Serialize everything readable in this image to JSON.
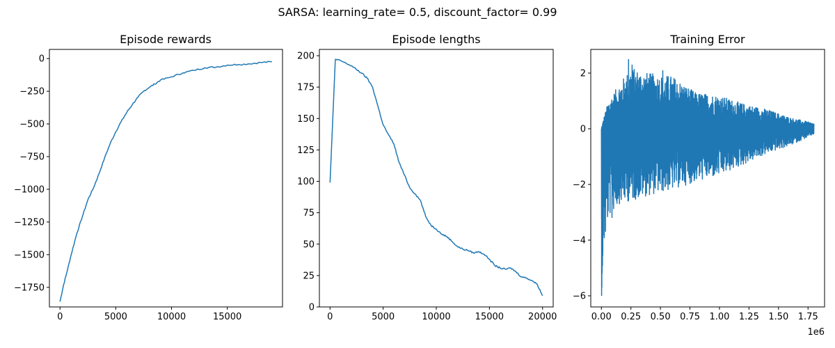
{
  "figure": {
    "suptitle": "SARSA: learning_rate= 0.5, discount_factor= 0.99",
    "line_color": "#1f77b4"
  },
  "chart_data": [
    {
      "type": "line",
      "title": "Episode rewards",
      "xlabel": "",
      "ylabel": "",
      "xlim": [
        -950,
        19950
      ],
      "ylim": [
        -1900,
        70
      ],
      "xticks": [
        0,
        5000,
        10000,
        15000
      ],
      "xtick_labels": [
        "0",
        "5000",
        "10000",
        "15000"
      ],
      "yticks": [
        0,
        -250,
        -500,
        -750,
        -1000,
        -1250,
        -1500,
        -1750
      ],
      "ytick_labels": [
        "0",
        "−250",
        "−500",
        "−750",
        "−1000",
        "−1250",
        "−1500",
        "−1750"
      ],
      "offset_label": "",
      "grid": false,
      "series": [
        {
          "x": [
            0,
            300,
            600,
            1000,
            1500,
            2000,
            2500,
            3000,
            3500,
            4000,
            4500,
            5000,
            5500,
            6000,
            6500,
            7000,
            7500,
            8000,
            8500,
            9000,
            10000,
            11000,
            12000,
            13000,
            14000,
            15000,
            16000,
            17000,
            18000,
            19000
          ],
          "y": [
            -1860,
            -1740,
            -1640,
            -1500,
            -1340,
            -1210,
            -1080,
            -990,
            -880,
            -760,
            -650,
            -560,
            -480,
            -410,
            -350,
            -295,
            -250,
            -220,
            -195,
            -165,
            -140,
            -110,
            -90,
            -70,
            -65,
            -50,
            -45,
            -40,
            -30,
            -25
          ]
        }
      ]
    },
    {
      "type": "line",
      "title": "Episode lengths",
      "xlabel": "",
      "ylabel": "",
      "xlim": [
        -1000,
        21000
      ],
      "ylim": [
        0,
        205
      ],
      "xticks": [
        0,
        5000,
        10000,
        15000,
        20000
      ],
      "xtick_labels": [
        "0",
        "5000",
        "10000",
        "15000",
        "20000"
      ],
      "yticks": [
        0,
        25,
        50,
        75,
        100,
        125,
        150,
        175,
        200
      ],
      "ytick_labels": [
        "0",
        "25",
        "50",
        "75",
        "100",
        "125",
        "150",
        "175",
        "200"
      ],
      "offset_label": "",
      "grid": false,
      "series": [
        {
          "x": [
            0,
            500,
            1000,
            1500,
            2000,
            2500,
            3000,
            3500,
            4000,
            4500,
            5000,
            5500,
            6000,
            6500,
            7000,
            7500,
            8000,
            8500,
            9000,
            9500,
            10000,
            10500,
            11000,
            11500,
            12000,
            12500,
            13000,
            13500,
            14000,
            14500,
            15000,
            15500,
            16000,
            16500,
            17000,
            17500,
            18000,
            18500,
            19000,
            19500,
            20000
          ],
          "y": [
            99,
            197,
            196,
            194,
            192,
            189,
            186,
            182,
            175,
            160,
            145,
            137,
            130,
            115,
            105,
            95,
            90,
            85,
            72,
            65,
            62,
            58,
            56,
            52,
            48,
            46,
            45,
            43,
            44,
            42,
            38,
            33,
            31,
            30,
            31,
            28,
            24,
            23,
            21,
            18,
            9
          ]
        }
      ]
    },
    {
      "type": "line",
      "title": "Training Error",
      "xlabel": "",
      "ylabel": "",
      "xlim": [
        -90000,
        1890000
      ],
      "ylim": [
        -6.4,
        2.85
      ],
      "xticks": [
        0,
        250000,
        500000,
        750000,
        1000000,
        1250000,
        1500000,
        1750000
      ],
      "xtick_labels": [
        "0.00",
        "0.25",
        "0.50",
        "0.75",
        "1.00",
        "1.25",
        "1.50",
        "1.75"
      ],
      "yticks": [
        2,
        0,
        -2,
        -4,
        -6
      ],
      "ytick_labels": [
        "2",
        "0",
        "−2",
        "−4",
        "−6"
      ],
      "offset_label": "1e6",
      "grid": false,
      "series": [
        {
          "x_range": [
            0,
            1800000
          ],
          "min_y": -6.0,
          "max_y": 2.5,
          "upper_envelope": [
            [
              0,
              0.0
            ],
            [
              20000,
              0.4
            ],
            [
              60000,
              1.0
            ],
            [
              150000,
              1.6
            ],
            [
              250000,
              2.2
            ],
            [
              400000,
              2.0
            ],
            [
              600000,
              1.9
            ],
            [
              800000,
              1.3
            ],
            [
              1000000,
              1.2
            ],
            [
              1200000,
              0.9
            ],
            [
              1400000,
              0.7
            ],
            [
              1600000,
              0.4
            ],
            [
              1800000,
              0.2
            ]
          ],
          "lower_envelope": [
            [
              0,
              -6.0
            ],
            [
              20000,
              -4.5
            ],
            [
              60000,
              -3.2
            ],
            [
              150000,
              -2.7
            ],
            [
              250000,
              -2.6
            ],
            [
              400000,
              -2.4
            ],
            [
              600000,
              -2.2
            ],
            [
              800000,
              -1.9
            ],
            [
              1000000,
              -1.7
            ],
            [
              1200000,
              -1.3
            ],
            [
              1400000,
              -0.9
            ],
            [
              1600000,
              -0.6
            ],
            [
              1800000,
              -0.2
            ]
          ]
        }
      ]
    }
  ]
}
